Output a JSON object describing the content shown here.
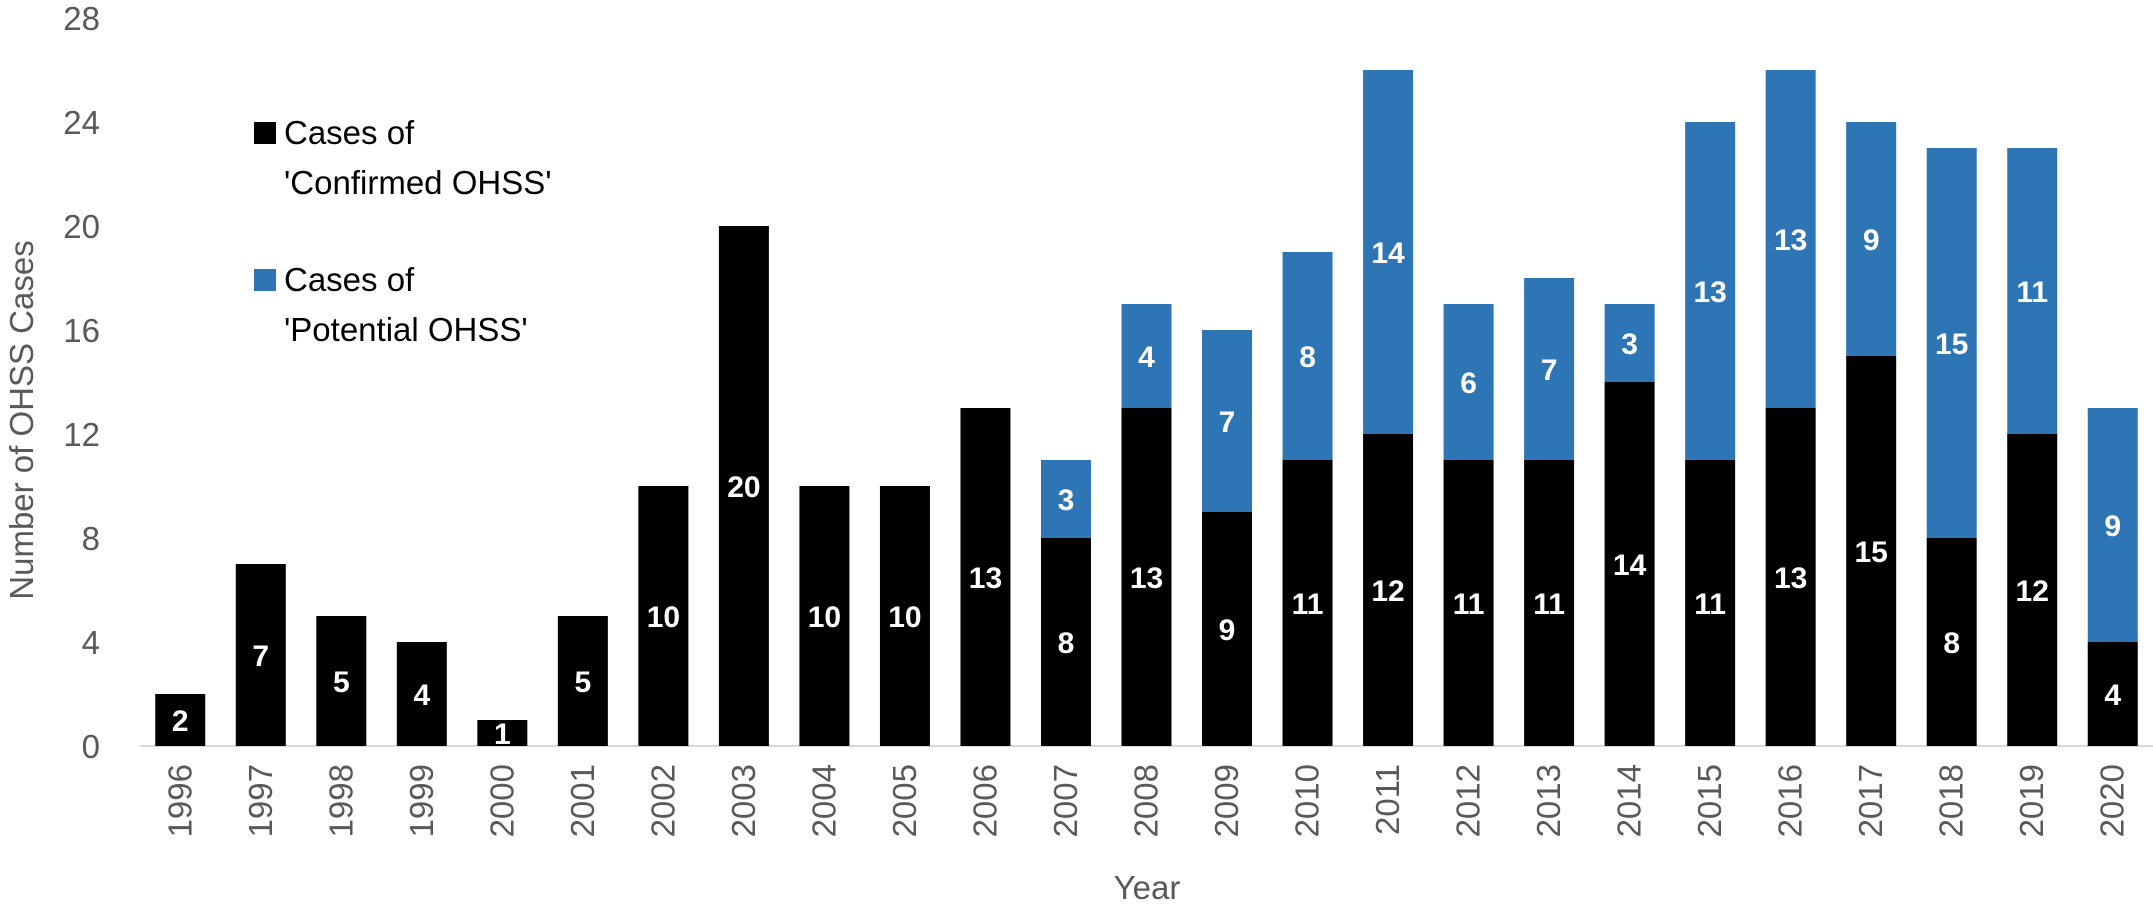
{
  "chart_data": {
    "type": "bar",
    "stacked": true,
    "title": "",
    "xlabel": "Year",
    "ylabel": "Number of OHSS Cases",
    "ylim": [
      0,
      28
    ],
    "yticks": [
      0,
      4,
      8,
      12,
      16,
      20,
      24,
      28
    ],
    "grid": false,
    "legend_position": "top-left",
    "categories": [
      "1996",
      "1997",
      "1998",
      "1999",
      "2000",
      "2001",
      "2002",
      "2003",
      "2004",
      "2005",
      "2006",
      "2007",
      "2008",
      "2009",
      "2010",
      "2011",
      "2012",
      "2013",
      "2014",
      "2015",
      "2016",
      "2017",
      "2018",
      "2019",
      "2020"
    ],
    "series": [
      {
        "name": "Cases of 'Confirmed OHSS'",
        "legend_lines": [
          "Cases of",
          "'Confirmed OHSS'"
        ],
        "color": "#000000",
        "values": [
          2,
          7,
          5,
          4,
          1,
          5,
          10,
          20,
          10,
          10,
          13,
          8,
          13,
          9,
          11,
          12,
          11,
          11,
          14,
          11,
          13,
          15,
          8,
          12,
          4
        ]
      },
      {
        "name": "Cases of 'Potential OHSS'",
        "legend_lines": [
          "Cases of",
          "'Potential OHSS'"
        ],
        "color": "#2E75B6",
        "values": [
          0,
          0,
          0,
          0,
          0,
          0,
          0,
          0,
          0,
          0,
          0,
          3,
          4,
          7,
          8,
          14,
          6,
          7,
          3,
          13,
          13,
          9,
          15,
          11,
          9
        ]
      }
    ]
  }
}
